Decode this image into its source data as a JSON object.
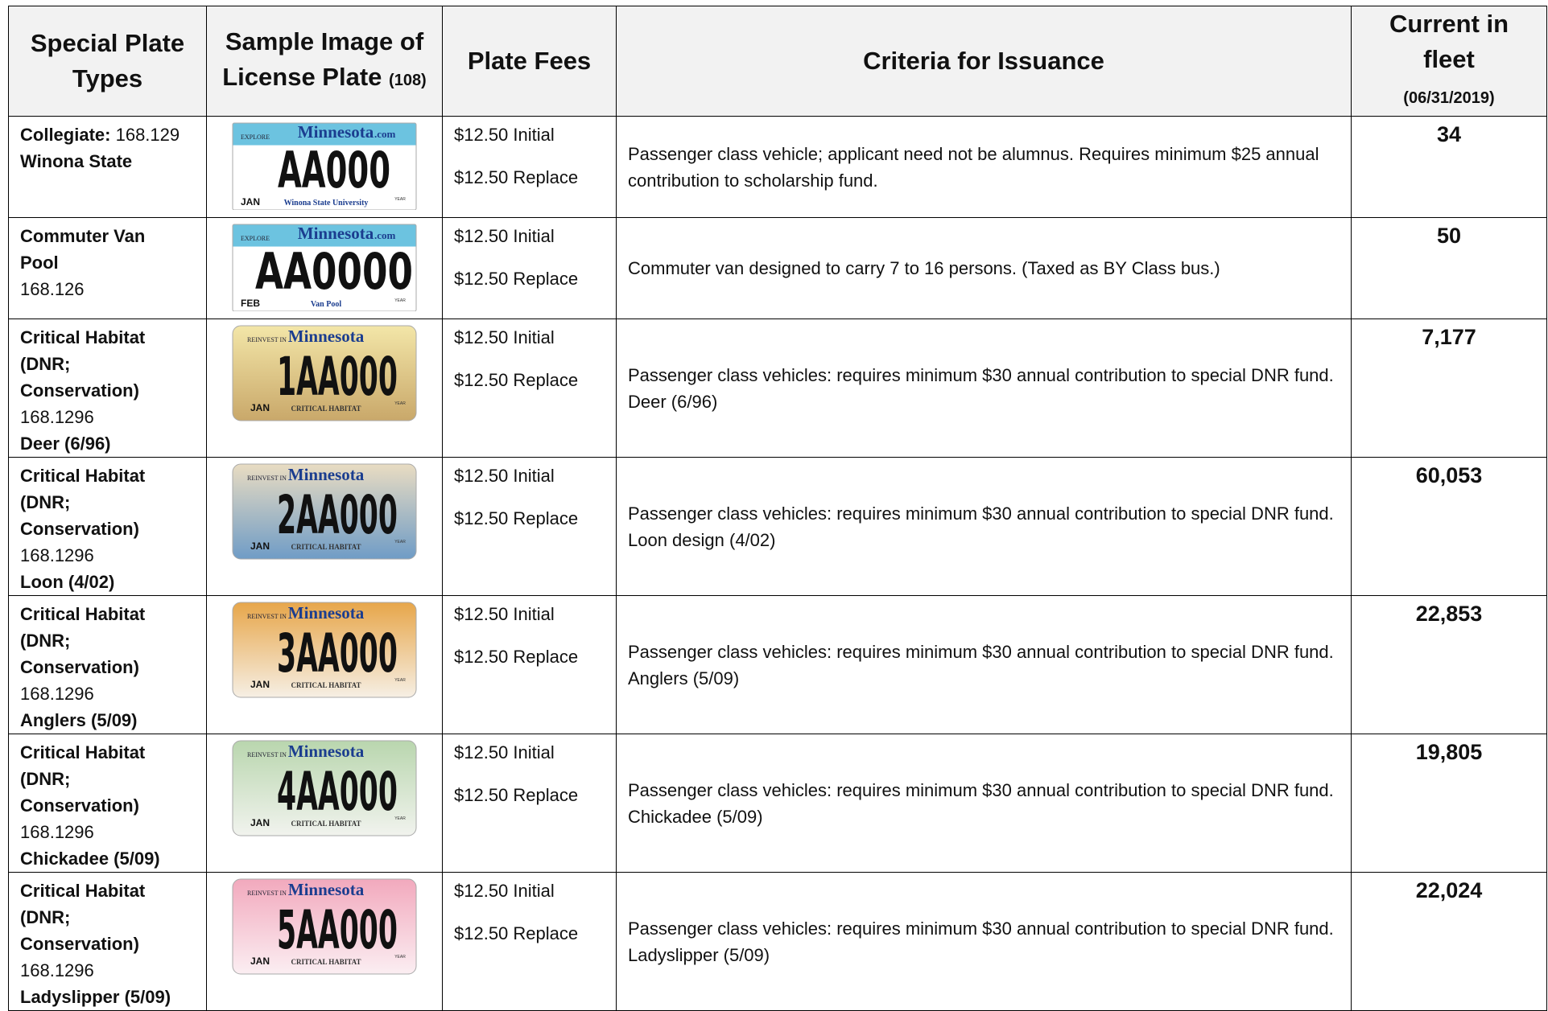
{
  "header": {
    "columns": [
      {
        "title": "Special Plate Types"
      },
      {
        "title": "Sample Image of License Plate",
        "note": "(108)"
      },
      {
        "title": "Plate Fees"
      },
      {
        "title": "Criteria for Issuance"
      },
      {
        "title": "Current in fleet",
        "note": "(06/31/2019)"
      }
    ]
  },
  "rows": [
    {
      "type_lines": [
        [
          {
            "text": "Collegiate:",
            "bold": true
          },
          {
            "text": "168.129",
            "bold": false
          }
        ],
        [
          {
            "text": "Winona State",
            "bold": true
          }
        ]
      ],
      "plate": {
        "prefix": "EXPLORE",
        "title": "Minnesota",
        "suffix": ".com",
        "number": "AA000",
        "month": "JAN",
        "caption": "Winona State University",
        "year": "YEAR",
        "colors": [
          "#6cc3e0",
          "#ffffff"
        ]
      },
      "fees": [
        "$12.50 Initial",
        "$12.50 Replace"
      ],
      "criteria": [
        "Passenger class vehicle; applicant need not be alumnus. Requires minimum $25 annual contribution to scholarship fund."
      ],
      "fleet": "34"
    },
    {
      "type_lines": [
        [
          {
            "text": "Commuter Van",
            "bold": true
          }
        ],
        [
          {
            "text": "Pool",
            "bold": true
          }
        ],
        [
          {
            "text": "168.126",
            "bold": false
          }
        ]
      ],
      "plate": {
        "prefix": "EXPLORE",
        "title": "Minnesota",
        "suffix": ".com",
        "number": "AA0000",
        "month": "FEB",
        "caption": "Van Pool",
        "year": "YEAR",
        "colors": [
          "#6cc3e0",
          "#ffffff"
        ]
      },
      "fees": [
        "$12.50 Initial",
        "$12.50 Replace"
      ],
      "criteria": [
        "Commuter van designed to carry 7 to 16 persons. (Taxed as BY Class bus.)"
      ],
      "fleet": "50"
    },
    {
      "type_lines": [
        [
          {
            "text": "Critical Habitat",
            "bold": true
          }
        ],
        [
          {
            "text": "(DNR;",
            "bold": true
          }
        ],
        [
          {
            "text": "Conservation)",
            "bold": true
          }
        ],
        [
          {
            "text": "168.1296",
            "bold": false
          }
        ],
        [
          {
            "text": "Deer (6/96)",
            "bold": true
          }
        ]
      ],
      "plate": {
        "prefix": "REINVEST IN",
        "title": "Minnesota",
        "suffix": "",
        "number": "1AA000",
        "month": "JAN",
        "caption": "CRITICAL HABITAT",
        "year": "YEAR",
        "colors": [
          "#f3e6a8",
          "#c9a86a"
        ]
      },
      "fees": [
        "$12.50 Initial",
        "$12.50 Replace"
      ],
      "criteria": [
        "Passenger class vehicles: requires minimum $30 annual contribution to special DNR fund.",
        "Deer (6/96)"
      ],
      "fleet": "7,177"
    },
    {
      "type_lines": [
        [
          {
            "text": "Critical Habitat",
            "bold": true
          }
        ],
        [
          {
            "text": "(DNR;",
            "bold": true
          }
        ],
        [
          {
            "text": "Conservation)",
            "bold": true
          }
        ],
        [
          {
            "text": "168.1296",
            "bold": false
          }
        ],
        [
          {
            "text": "Loon (4/02)",
            "bold": true
          }
        ]
      ],
      "plate": {
        "prefix": "REINVEST IN",
        "title": "Minnesota",
        "suffix": "",
        "number": "2AA000",
        "month": "JAN",
        "caption": "CRITICAL HABITAT",
        "year": "YEAR",
        "colors": [
          "#e9dcc2",
          "#6f9cc6"
        ]
      },
      "fees": [
        "$12.50 Initial",
        "$12.50 Replace"
      ],
      "criteria": [
        "Passenger class vehicles: requires minimum $30 annual contribution to special DNR fund.",
        "Loon design (4/02)"
      ],
      "fleet": "60,053"
    },
    {
      "type_lines": [
        [
          {
            "text": "Critical Habitat",
            "bold": true
          }
        ],
        [
          {
            "text": "(DNR;",
            "bold": true
          }
        ],
        [
          {
            "text": "Conservation)",
            "bold": true
          }
        ],
        [
          {
            "text": "168.1296",
            "bold": false
          }
        ],
        [
          {
            "text": "Anglers (5/09)",
            "bold": true
          }
        ]
      ],
      "plate": {
        "prefix": "REINVEST IN",
        "title": "Minnesota",
        "suffix": "",
        "number": "3AA000",
        "month": "JAN",
        "caption": "CRITICAL HABITAT",
        "year": "YEAR",
        "colors": [
          "#e7a64a",
          "#f6efe4"
        ]
      },
      "fees": [
        "$12.50 Initial",
        "$12.50 Replace"
      ],
      "criteria": [
        "Passenger class vehicles: requires minimum $30 annual contribution to special DNR fund.",
        "Anglers (5/09)"
      ],
      "fleet": "22,853"
    },
    {
      "type_lines": [
        [
          {
            "text": "Critical Habitat",
            "bold": true
          }
        ],
        [
          {
            "text": "(DNR;",
            "bold": true
          }
        ],
        [
          {
            "text": "Conservation)",
            "bold": true
          }
        ],
        [
          {
            "text": "168.1296",
            "bold": false
          }
        ],
        [
          {
            "text": "Chickadee (5/09)",
            "bold": true
          }
        ]
      ],
      "plate": {
        "prefix": "REINVEST IN",
        "title": "Minnesota",
        "suffix": "",
        "number": "4AA000",
        "month": "JAN",
        "caption": "CRITICAL HABITAT",
        "year": "YEAR",
        "colors": [
          "#b9d6ae",
          "#f1f3ee"
        ]
      },
      "fees": [
        "$12.50 Initial",
        "$12.50 Replace"
      ],
      "criteria": [
        "Passenger class vehicles: requires minimum $30 annual contribution to special DNR fund.",
        "Chickadee (5/09)"
      ],
      "fleet": "19,805"
    },
    {
      "type_lines": [
        [
          {
            "text": "Critical Habitat",
            "bold": true
          }
        ],
        [
          {
            "text": "(DNR;",
            "bold": true
          }
        ],
        [
          {
            "text": "Conservation)",
            "bold": true
          }
        ],
        [
          {
            "text": "168.1296",
            "bold": false
          }
        ],
        [
          {
            "text": "Ladyslipper (5/09)",
            "bold": true
          }
        ]
      ],
      "plate": {
        "prefix": "REINVEST IN",
        "title": "Minnesota",
        "suffix": "",
        "number": "5AA000",
        "month": "JAN",
        "caption": "CRITICAL HABITAT",
        "year": "YEAR",
        "colors": [
          "#f2a9bd",
          "#fbeef2"
        ]
      },
      "fees": [
        "$12.50 Initial",
        "$12.50 Replace"
      ],
      "criteria": [
        "Passenger class vehicles: requires minimum $30 annual contribution to special DNR fund.",
        "Ladyslipper (5/09)"
      ],
      "fleet": "22,024"
    }
  ]
}
